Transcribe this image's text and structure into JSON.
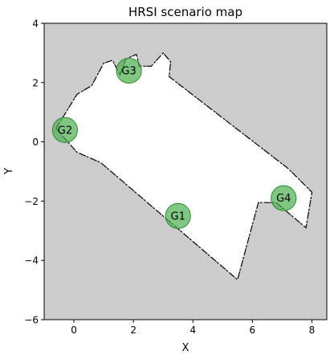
{
  "chart_data": {
    "type": "scatter",
    "title": "HRSI scenario map",
    "xlabel": "X",
    "ylabel": "Y",
    "xlim": [
      -1.0,
      8.5
    ],
    "ylim": [
      -6,
      4
    ],
    "xticks": [
      0,
      2,
      4,
      6,
      8
    ],
    "yticks": [
      -6,
      -4,
      -2,
      0,
      2,
      4
    ],
    "grid": false,
    "colors": {
      "background": "#cccccc",
      "free_space": "#ffffff",
      "walls": "#000000",
      "goal_fill": "#4caf50",
      "goal_edge": "#2e8b2e"
    },
    "map_free_polygon": [
      [
        -0.6,
        0.45
      ],
      [
        0.1,
        1.6
      ],
      [
        0.6,
        1.9
      ],
      [
        1.0,
        2.65
      ],
      [
        1.3,
        2.75
      ],
      [
        1.55,
        2.25
      ],
      [
        1.75,
        2.8
      ],
      [
        2.1,
        2.95
      ],
      [
        2.2,
        2.55
      ],
      [
        2.6,
        2.55
      ],
      [
        3.0,
        3.0
      ],
      [
        3.25,
        2.7
      ],
      [
        3.2,
        2.2
      ],
      [
        7.2,
        -0.9
      ],
      [
        8.0,
        -1.7
      ],
      [
        7.8,
        -2.9
      ],
      [
        6.8,
        -2.05
      ],
      [
        6.2,
        -2.05
      ],
      [
        5.5,
        -4.65
      ],
      [
        0.9,
        -0.7
      ],
      [
        0.1,
        -0.35
      ]
    ],
    "goals": [
      {
        "label": "G1",
        "x": 3.5,
        "y": -2.5
      },
      {
        "label": "G2",
        "x": -0.3,
        "y": 0.4
      },
      {
        "label": "G3",
        "x": 1.85,
        "y": 2.4
      },
      {
        "label": "G4",
        "x": 7.05,
        "y": -1.9
      }
    ],
    "marker_radius": 0.42
  }
}
